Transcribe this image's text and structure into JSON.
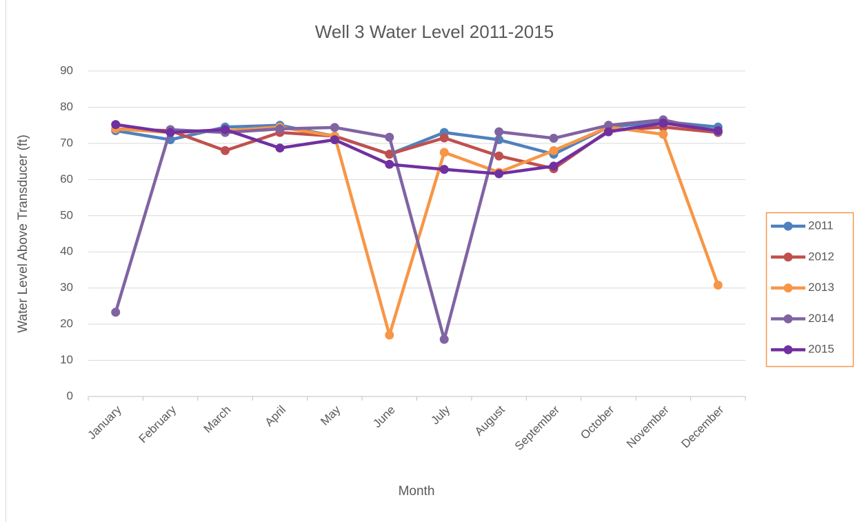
{
  "chart_data": {
    "type": "line",
    "title": "Well 3 Water Level  2011-2015",
    "x_label": "Month",
    "y_label": "Water Level Above Transducer (ft)",
    "categories": [
      "January",
      "February",
      "March",
      "April",
      "May",
      "June",
      "July",
      "August",
      "September",
      "October",
      "November",
      "December"
    ],
    "series": [
      {
        "name": "2011",
        "color": "#4f81bd",
        "values": [
          73.5,
          71,
          74.5,
          75,
          72,
          67,
          73,
          71,
          67,
          74.5,
          76,
          74.5
        ]
      },
      {
        "name": "2012",
        "color": "#c0504d",
        "values": [
          74,
          73.5,
          68,
          73,
          72,
          67,
          71.5,
          66.5,
          63,
          73.5,
          74.5,
          73
        ]
      },
      {
        "name": "2013",
        "color": "#f79646",
        "values": [
          74,
          73,
          73.5,
          74.5,
          72,
          17,
          67.5,
          62,
          68,
          74.5,
          72.5,
          30.8
        ]
      },
      {
        "name": "2014",
        "color": "#8064a2",
        "values": [
          23.3,
          73.8,
          73,
          74,
          74.4,
          71.7,
          15.8,
          73.2,
          71.4,
          75,
          76.5,
          73.2
        ]
      },
      {
        "name": "2015",
        "color": "#7030a0",
        "values": [
          75.2,
          73,
          73.8,
          68.7,
          71,
          64.2,
          62.8,
          61.6,
          63.7,
          73.2,
          75.6,
          73.5
        ]
      }
    ],
    "ylim": [
      0,
      90
    ],
    "yticks": [
      0,
      10,
      20,
      30,
      40,
      50,
      60,
      70,
      80,
      90
    ],
    "grid": true,
    "legend": "right"
  }
}
